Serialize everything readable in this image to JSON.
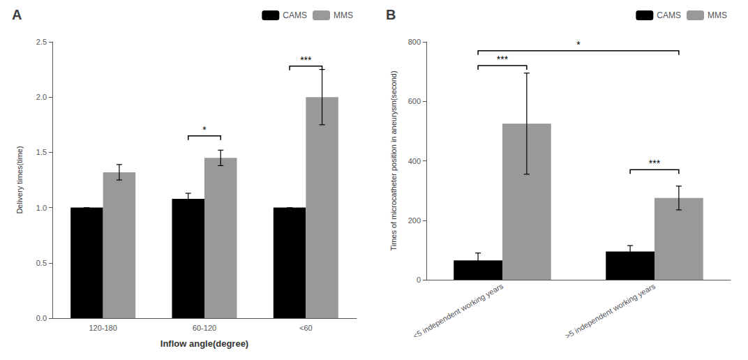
{
  "chart_data": [
    {
      "type": "bar",
      "title": "A",
      "categories": [
        "120-180",
        "60-120",
        "<60"
      ],
      "series": [
        {
          "name": "CAMS",
          "color": "#000000",
          "values": [
            1.0,
            1.08,
            1.0
          ],
          "errors": [
            0.0,
            0.05,
            0.0
          ]
        },
        {
          "name": "MMS",
          "color": "#999999",
          "values": [
            1.32,
            1.45,
            2.0
          ],
          "errors": [
            0.07,
            0.07,
            0.25
          ]
        }
      ],
      "xlabel": "Inflow angle(degree)",
      "ylabel": "Delivery times(time)",
      "ylim": [
        0,
        2.5
      ],
      "yticks": [
        {
          "value": 0,
          "label": "0.0"
        },
        0.5,
        {
          "value": 1,
          "label": "1.0"
        },
        1.5,
        {
          "value": 2,
          "label": "2.0"
        },
        2.5
      ],
      "legend": "upper right",
      "grid": false,
      "annotations": [
        {
          "text": "*",
          "categories": [
            "60-120"
          ],
          "y": 1.65
        },
        {
          "text": "***",
          "categories": [
            "<60"
          ],
          "y": 2.28
        }
      ]
    },
    {
      "type": "bar",
      "title": "B",
      "categories": [
        "<5 independent working years",
        ">5 independent working years"
      ],
      "series": [
        {
          "name": "CAMS",
          "color": "#000000",
          "values": [
            65,
            95
          ],
          "errors": [
            25,
            20
          ]
        },
        {
          "name": "MMS",
          "color": "#999999",
          "values": [
            525,
            275
          ],
          "errors": [
            170,
            40
          ]
        }
      ],
      "ylabel": "Times of microcatheter position in aneurysm(second)",
      "ylim": [
        0,
        800
      ],
      "yticks": [
        0,
        200,
        400,
        600,
        800
      ],
      "legend": "upper right",
      "grid": false,
      "annotations": [
        {
          "text": "***",
          "categories": [
            "<5 independent working years"
          ],
          "y": 720
        },
        {
          "text": "***",
          "categories": [
            ">5 independent working years"
          ],
          "y": 370
        },
        {
          "text": "*",
          "categories": [
            "<5 independent working years",
            ">5 independent working years"
          ],
          "y": 770
        }
      ]
    }
  ]
}
